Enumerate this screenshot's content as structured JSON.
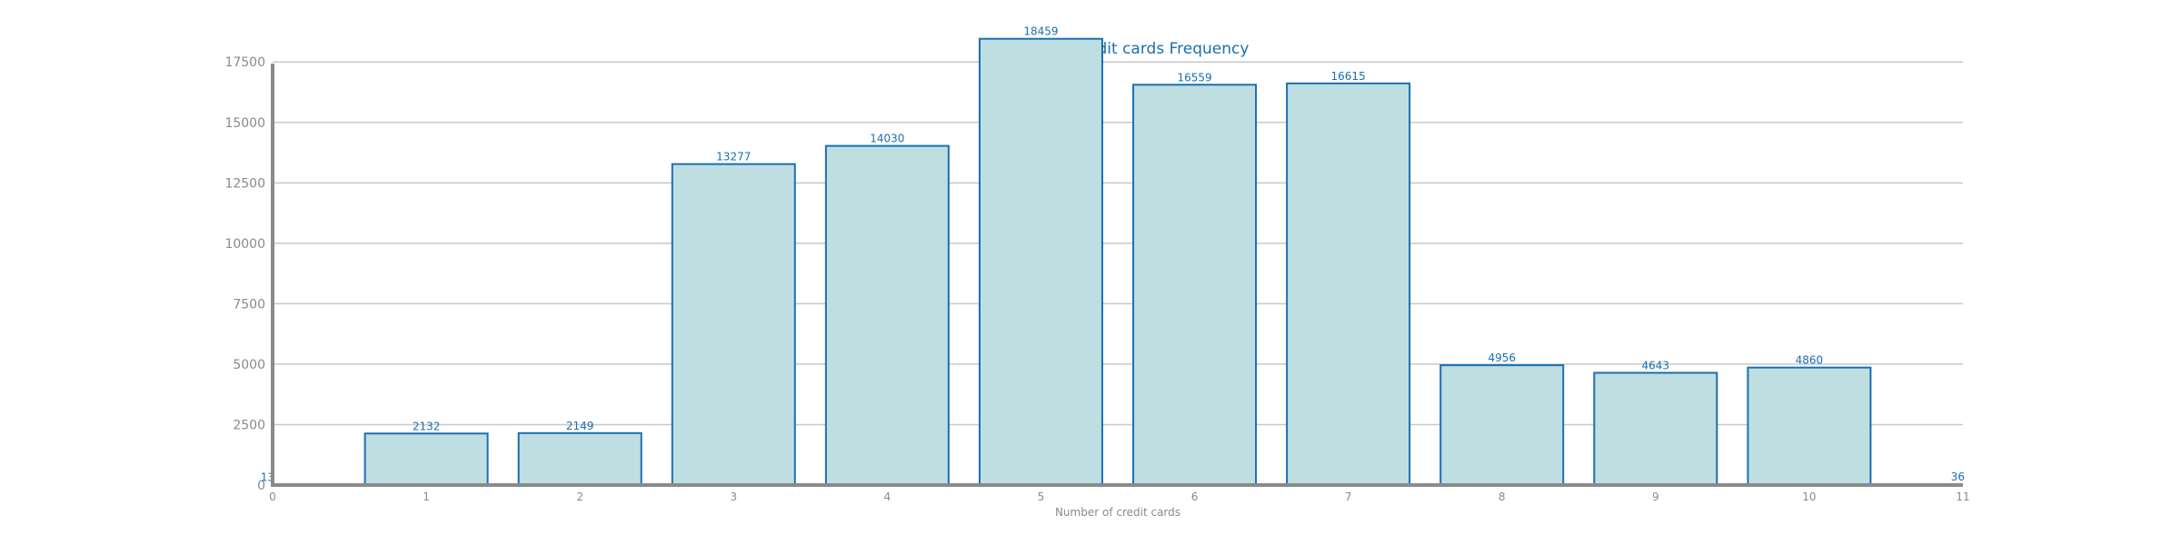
{
  "chart_data": {
    "type": "bar",
    "title": "Number of credit cards Frequency",
    "xlabel": "Number of credit cards",
    "ylabel": "",
    "x": [
      0,
      1,
      2,
      3,
      4,
      5,
      6,
      7,
      8,
      9,
      10,
      11
    ],
    "values": [
      13,
      2132,
      2149,
      13277,
      14030,
      18459,
      16559,
      16615,
      4956,
      4643,
      4860,
      36
    ],
    "xticks": [
      "0",
      "1",
      "2",
      "3",
      "4",
      "5",
      "6",
      "7",
      "8",
      "9",
      "10",
      "11"
    ],
    "yticks": [
      "0",
      "2500",
      "5000",
      "7500",
      "10000",
      "12500",
      "15000",
      "17500"
    ],
    "ylim": [
      0,
      19500
    ],
    "xlim": [
      0,
      11
    ],
    "grid": true,
    "colors": {
      "bar_fill": "#bfdee2",
      "bar_edge": "#1a6fb0",
      "text": "#1a6fb0",
      "axis": "#8a8a8a"
    }
  }
}
